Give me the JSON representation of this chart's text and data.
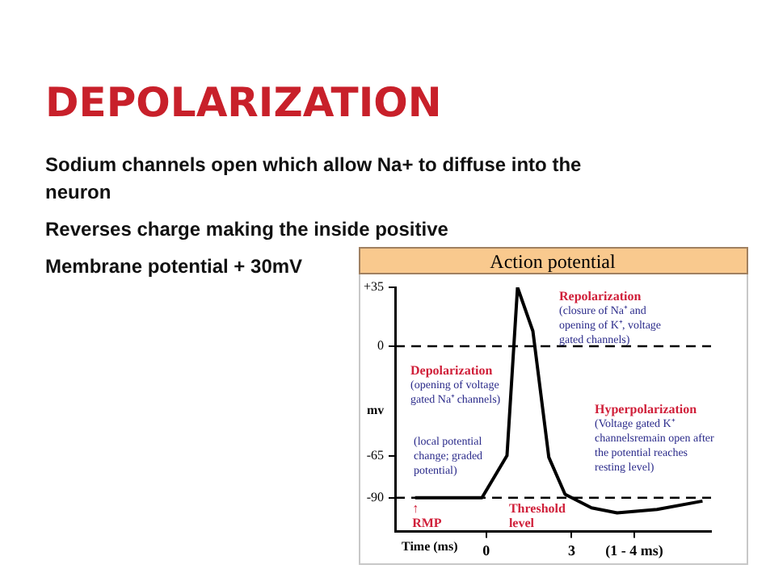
{
  "chart_data": {
    "type": "line",
    "title": "DEPOLARIZATION",
    "subtitle": "Action potential",
    "xlabel": "Time (ms)",
    "ylabel": "mv",
    "x": [
      -2.5,
      -0.15,
      0.73,
      1.1,
      1.64,
      2.2,
      2.77,
      3.7,
      4.6,
      6.0,
      7.6
    ],
    "series": [
      {
        "color": "#000000",
        "values": [
          -90,
          -90,
          -65,
          35,
          9,
          -66,
          -88,
          -96,
          -99,
          -97,
          -92
        ]
      }
    ],
    "xlim": [
      -3.2,
      7.9
    ],
    "xticks": [
      0,
      3,
      {
        "value": 5.2,
        "label": "(1 - 4 ms)"
      }
    ],
    "ylim": [
      -110,
      35
    ],
    "yticks": [
      {
        "value": 35,
        "label": "+35"
      },
      0,
      -65,
      -90
    ],
    "ref_lines": [
      {
        "axis": "y",
        "value": 0,
        "line_style": "dashed"
      },
      {
        "axis": "y",
        "value": -90,
        "line_style": "dashed"
      }
    ],
    "marker": "none",
    "line_style": "solid",
    "grid": false,
    "legend": false,
    "annotations": [
      "Sodium channels open which allow Na+ to diffuse into the\nneuron",
      "Reverses charge making the inside positive",
      "Membrane potential + 30mV",
      "Repolarization\n(closure of Na⁺ and\nopening of K⁺, voltage\ngated channels)",
      "Depolarization\n(opening of voltage\ngated Na⁺ channels)",
      "(local potential\nchange; graded\npotential)",
      "Hyperpolarization\n(Voltage gated K⁺\nchannelsremain open after\nthe potential reaches\nresting level)",
      {
        "text": "Threshold\nlevel",
        "x": 0.8,
        "y": -93
      },
      {
        "text": "↑\nRMP",
        "x": -2.6,
        "y": -93
      }
    ]
  }
}
